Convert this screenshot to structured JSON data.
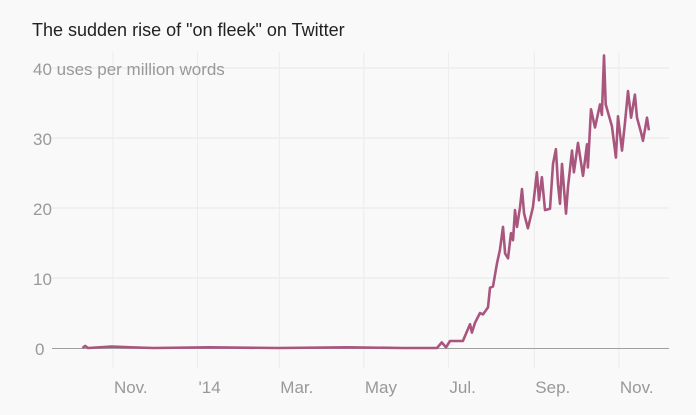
{
  "chart_data": {
    "type": "line",
    "title": "The sudden rise of \"on fleek\" on Twitter",
    "ylabel": "uses per million words",
    "x_unit": "days since 2013-10-01",
    "xlim": [
      0,
      425
    ],
    "ylim": [
      0,
      40
    ],
    "grid": true,
    "y_ticks": [
      0,
      10,
      20,
      30,
      40
    ],
    "y_tick_labels": [
      "0",
      "10",
      "20",
      "30",
      "40 uses per million words"
    ],
    "x_ticks": [
      31,
      92,
      151,
      212,
      273,
      335,
      396
    ],
    "x_tick_labels": [
      "Nov.",
      "'14",
      "Mar.",
      "May",
      "Jul.",
      "Sep.",
      "Nov."
    ],
    "line_color": "#a9567f",
    "series": [
      {
        "name": "on fleek",
        "x": [
          9,
          11,
          13,
          30,
          60,
          100,
          150,
          200,
          240,
          252.5,
          264.8,
          268.2,
          271.3,
          274.2,
          283.5,
          288.6,
          290,
          292.2,
          295.8,
          298,
          301.6,
          303,
          305.2,
          308.1,
          310.2,
          312.4,
          313.9,
          316,
          318.2,
          319.6,
          321.1,
          322.5,
          324.7,
          326.1,
          327.6,
          330.4,
          334,
          336.9,
          338.4,
          340.5,
          342.7,
          346.3,
          348.5,
          350.6,
          352.1,
          353.5,
          355,
          357.9,
          359.3,
          362.2,
          363.6,
          366.5,
          370.1,
          373,
          373.7,
          375.9,
          378.8,
          382.4,
          383.8,
          385.3,
          386.5,
          391,
          393.9,
          395.4,
          398.3,
          400.4,
          402.6,
          404.8,
          407.6,
          409.1,
          412,
          413.4,
          416.3,
          417.7
        ],
        "y": [
          0,
          0.3,
          0,
          0.2,
          0,
          0.1,
          0,
          0.1,
          0,
          0,
          0,
          0.8,
          0.1,
          1.0,
          1.0,
          3.4,
          2.2,
          3.6,
          5.0,
          4.8,
          5.8,
          8.6,
          8.8,
          12.1,
          14,
          17.3,
          13.5,
          12.8,
          16.4,
          15.4,
          19.7,
          17.3,
          20.1,
          22.7,
          19.2,
          17.1,
          20.1,
          25.1,
          21.1,
          24.4,
          19.7,
          19.9,
          26.3,
          28.4,
          23.4,
          20.6,
          26.3,
          19.2,
          23.0,
          28.2,
          25.1,
          29.3,
          24.6,
          29.1,
          25.8,
          34.1,
          31.5,
          34.8,
          33.3,
          41.8,
          34.8,
          31.7,
          27.2,
          33.1,
          28.2,
          32.2,
          36.7,
          32.9,
          36.2,
          32.9,
          30.8,
          29.6,
          32.9,
          31.1
        ]
      }
    ]
  }
}
